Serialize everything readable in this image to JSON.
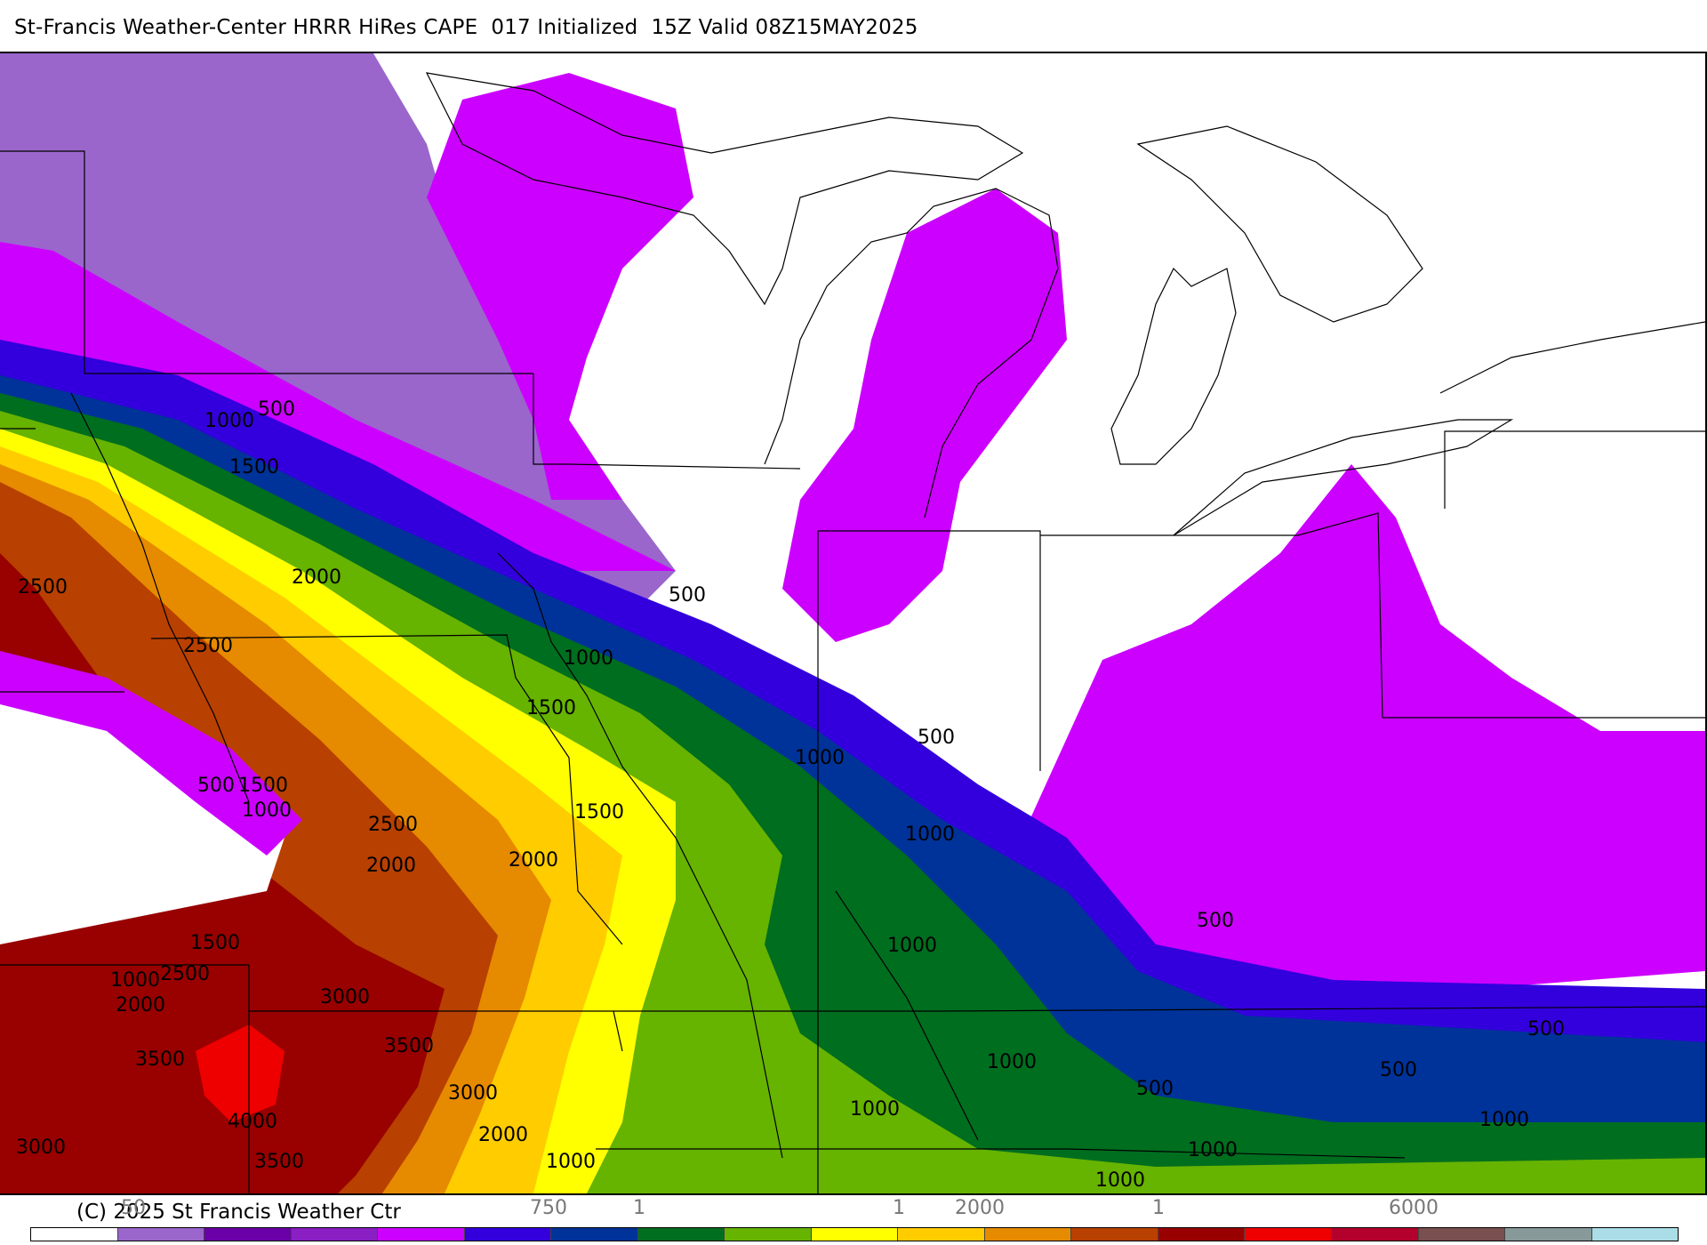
{
  "header": {
    "title": "St-Francis Weather-Center HRRR HiRes CAPE  017 Initialized  15Z Valid 08Z15MAY2025"
  },
  "map": {
    "variable": "CAPE",
    "colors": {
      "lavender": "#9a66cc",
      "dark_purple": "#6a00a8",
      "purple": "#8a1fc4",
      "magenta": "#cc00ff",
      "blue": "#3300dd",
      "navy": "#003399",
      "green": "#006e1f",
      "light_green": "#66b300",
      "yellow": "#ffff00",
      "gold": "#ffcc00",
      "orange": "#e68a00",
      "rust": "#b84000",
      "dark_red": "#990000",
      "red": "#ee0000"
    },
    "contour_labels": [
      {
        "text": "500"
      },
      {
        "text": "1000"
      },
      {
        "text": "1500"
      },
      {
        "text": "2000"
      },
      {
        "text": "2500"
      },
      {
        "text": "2500"
      },
      {
        "text": "500"
      },
      {
        "text": "1000"
      },
      {
        "text": "1500"
      },
      {
        "text": "1500"
      },
      {
        "text": "1000"
      },
      {
        "text": "500"
      },
      {
        "text": "1500"
      },
      {
        "text": "1000"
      },
      {
        "text": "2500"
      },
      {
        "text": "2000"
      },
      {
        "text": "2000"
      },
      {
        "text": "1000"
      },
      {
        "text": "500"
      },
      {
        "text": "1000"
      },
      {
        "text": "1500"
      },
      {
        "text": "1000"
      },
      {
        "text": "2500"
      },
      {
        "text": "2000"
      },
      {
        "text": "3000"
      },
      {
        "text": "3500"
      },
      {
        "text": "3500"
      },
      {
        "text": "3000"
      },
      {
        "text": "4000"
      },
      {
        "text": "2000"
      },
      {
        "text": "3000"
      },
      {
        "text": "3500"
      },
      {
        "text": "1000"
      },
      {
        "text": "1000"
      },
      {
        "text": "1000"
      },
      {
        "text": "500"
      },
      {
        "text": "1000"
      },
      {
        "text": "1000"
      },
      {
        "text": "500"
      },
      {
        "text": "500"
      },
      {
        "text": "500"
      },
      {
        "text": "1000"
      }
    ]
  },
  "footer": {
    "copyright": "(C) 2025 St Francis Weather Ctr",
    "colorbar_colors": [
      "#ffffff",
      "#9a66cc",
      "#6a00a8",
      "#8a1fc4",
      "#cc00ff",
      "#3300dd",
      "#003399",
      "#006e1f",
      "#66b300",
      "#ffff00",
      "#ffcc00",
      "#e68a00",
      "#b84000",
      "#990000",
      "#ee0000",
      "#b3002d",
      "#7a4f4f",
      "#889999",
      "#aadde6"
    ],
    "ticks": [
      {
        "text": "50"
      },
      {
        "text": "750"
      },
      {
        "text": "1"
      },
      {
        "text": "1"
      },
      {
        "text": "2000"
      },
      {
        "text": "1"
      },
      {
        "text": "6000"
      }
    ]
  }
}
